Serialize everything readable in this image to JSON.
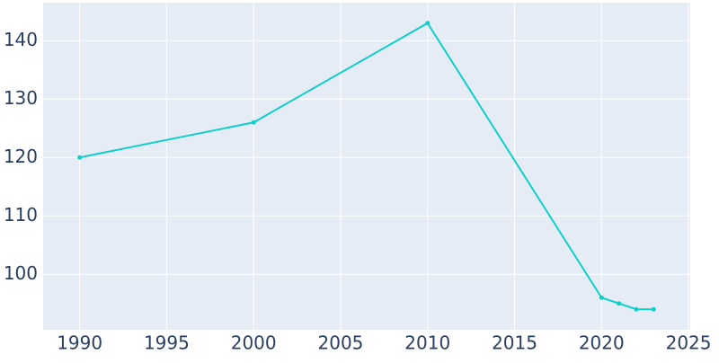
{
  "chart_data": {
    "type": "line",
    "x": [
      1990,
      2000,
      2010,
      2020,
      2021,
      2022,
      2023
    ],
    "series": [
      {
        "color": "#10cfc9",
        "values": [
          120,
          126,
          143,
          96,
          95,
          94,
          94
        ]
      }
    ],
    "xlim": [
      1987.9,
      2025.1
    ],
    "ylim": [
      90.5,
      146.5
    ],
    "xticks": [
      1990,
      1995,
      2000,
      2005,
      2010,
      2015,
      2020,
      2025
    ],
    "yticks": [
      100,
      110,
      120,
      130,
      140
    ],
    "grid": true
  }
}
